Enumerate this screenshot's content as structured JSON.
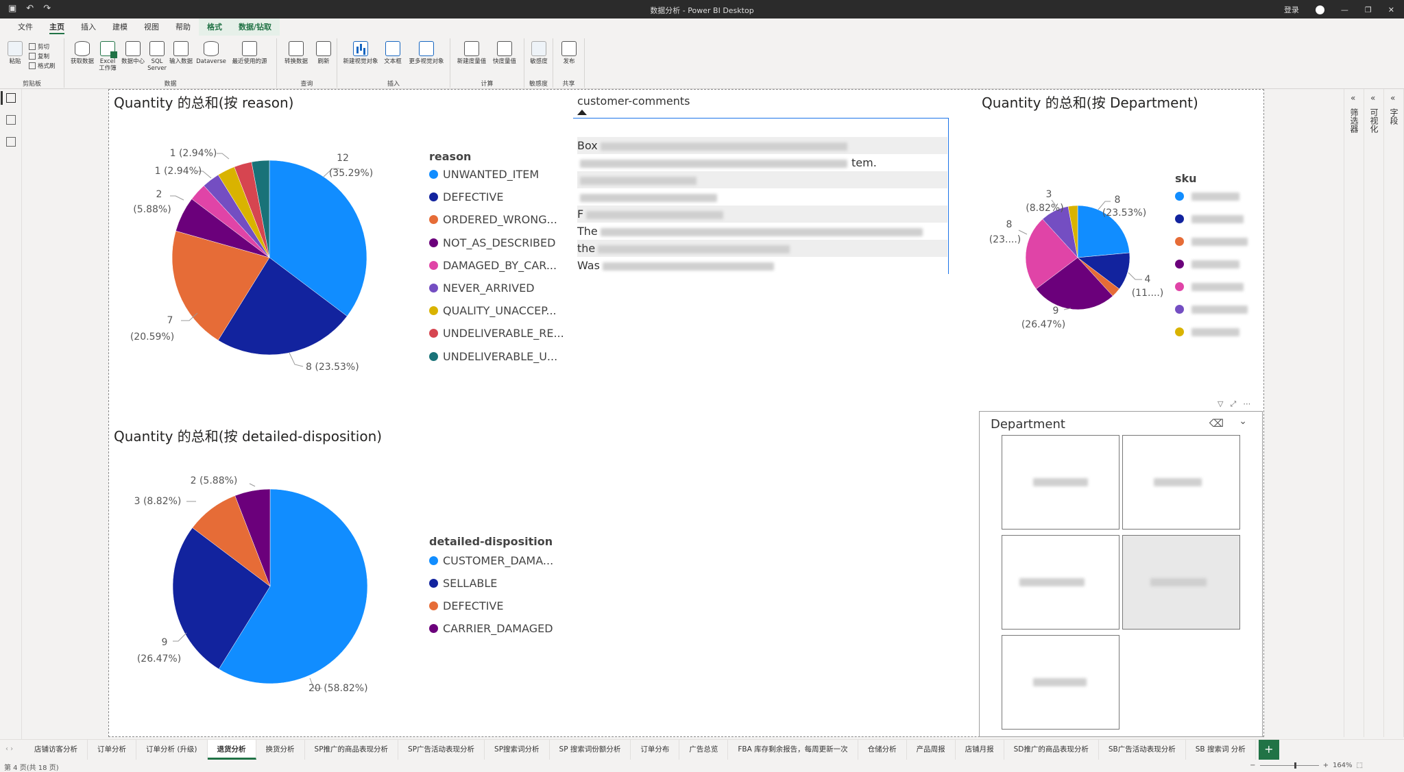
{
  "window": {
    "title": "数据分析 - Power BI Desktop",
    "signin_label": "登录",
    "minimize_glyph": "—",
    "restore_glyph": "❐",
    "close_glyph": "✕"
  },
  "ribbon_tabs": [
    {
      "label": "文件",
      "active": false,
      "contextual": false
    },
    {
      "label": "主页",
      "active": true,
      "contextual": false
    },
    {
      "label": "插入",
      "active": false,
      "contextual": false
    },
    {
      "label": "建模",
      "active": false,
      "contextual": false
    },
    {
      "label": "视图",
      "active": false,
      "contextual": false
    },
    {
      "label": "帮助",
      "active": false,
      "contextual": false
    },
    {
      "label": "格式",
      "active": false,
      "contextual": true
    },
    {
      "label": "数据/钻取",
      "active": false,
      "contextual": true
    }
  ],
  "ribbon": {
    "clipboard": {
      "paste": "粘贴",
      "cut": "剪切",
      "copy": "复制",
      "format_painter": "格式刷",
      "group": "剪贴板"
    },
    "data": {
      "get_data": "获取数据",
      "excel": "Excel 工作簿",
      "hub": "数据中心",
      "sql": "SQL Server",
      "enter": "输入数据",
      "dataverse": "Dataverse",
      "recent": "最近使用的源",
      "group": "数据"
    },
    "queries": {
      "transform": "转换数据",
      "refresh": "刷新",
      "group": "查询"
    },
    "insert": {
      "new_visual": "新建视觉对象",
      "textbox": "文本框",
      "more_visuals": "更多视觉对象",
      "group": "插入"
    },
    "calc": {
      "new_measure": "新建度量值",
      "quick_measure": "快度量值",
      "group": "计算"
    },
    "sensitivity": {
      "label": "敏感度",
      "group": "敏感度"
    },
    "share": {
      "publish": "发布",
      "group": "共享"
    }
  },
  "visuals": {
    "reason_pie": {
      "title": "Quantity 的总和(按 reason)",
      "legend_title": "reason",
      "labels": [
        "12",
        "(35.29%)",
        "8 (23.53%)",
        "7",
        "(20.59%)",
        "2",
        "(5.88%)",
        "1 (2.94%)",
        "1 (2.94%)"
      ]
    },
    "disposition_pie": {
      "title": "Quantity 的总和(按 detailed-disposition)",
      "legend_title": "detailed-disposition",
      "labels": [
        "20 (58.82%)",
        "9",
        "(26.47%)",
        "3 (8.82%)",
        "2 (5.88%)"
      ]
    },
    "department_pie": {
      "title": "Quantity 的总和(按 Department)",
      "legend_title": "sku",
      "labels": [
        "8",
        "(23.53%)",
        "4",
        "(11....)",
        "9",
        "(26.47%)",
        "8",
        "(23....)",
        "3",
        "(8.82%)"
      ]
    },
    "comments": {
      "header": "customer-comments",
      "rows": [
        "Box",
        "",
        "",
        "",
        "F",
        "The",
        "the",
        "Was"
      ],
      "row2_tail": "tem."
    },
    "slicer": {
      "title": "Department"
    }
  },
  "chart_data": [
    {
      "type": "pie",
      "title": "Quantity 的总和(按 reason)",
      "legend_title": "reason",
      "categories": [
        "UNWANTED_ITEM",
        "DEFECTIVE",
        "ORDERED_WRONG...",
        "NOT_AS_DESCRIBED",
        "DAMAGED_BY_CAR...",
        "NEVER_ARRIVED",
        "QUALITY_UNACCEP...",
        "UNDELIVERABLE_RE...",
        "UNDELIVERABLE_U..."
      ],
      "values": [
        12,
        8,
        7,
        2,
        1,
        1,
        1,
        1,
        1
      ],
      "colors": [
        "#118DFF",
        "#12239E",
        "#E66C37",
        "#6B007B",
        "#E044A7",
        "#744EC2",
        "#D9B300",
        "#D64550",
        "#197278"
      ]
    },
    {
      "type": "pie",
      "title": "Quantity 的总和(按 detailed-disposition)",
      "legend_title": "detailed-disposition",
      "categories": [
        "CUSTOMER_DAMA...",
        "SELLABLE",
        "DEFECTIVE",
        "CARRIER_DAMAGED"
      ],
      "values": [
        20,
        9,
        3,
        2
      ],
      "colors": [
        "#118DFF",
        "#12239E",
        "#E66C37",
        "#6B007B"
      ]
    },
    {
      "type": "pie",
      "title": "Quantity 的总和(按 Department)",
      "legend_title": "sku",
      "values": [
        8,
        4,
        1,
        9,
        8,
        3,
        1
      ],
      "colors": [
        "#118DFF",
        "#12239E",
        "#E66C37",
        "#6B007B",
        "#E044A7",
        "#744EC2",
        "#D9B300"
      ]
    }
  ],
  "page_tabs": [
    {
      "label": "店铺访客分析",
      "active": false
    },
    {
      "label": "订单分析",
      "active": false
    },
    {
      "label": "订单分析 (升级)",
      "active": false
    },
    {
      "label": "退货分析",
      "active": true
    },
    {
      "label": "换货分析",
      "active": false
    },
    {
      "label": "SP推广的商品表现分析",
      "active": false
    },
    {
      "label": "SP广告活动表现分析",
      "active": false
    },
    {
      "label": "SP搜索词分析",
      "active": false
    },
    {
      "label": "SP 搜索词份额分析",
      "active": false
    },
    {
      "label": "订单分布",
      "active": false
    },
    {
      "label": "广告总览",
      "active": false
    },
    {
      "label": "FBA 库存剩余报告，每周更新一次",
      "active": false
    },
    {
      "label": "仓储分析",
      "active": false
    },
    {
      "label": "产品周报",
      "active": false
    },
    {
      "label": "店铺月报",
      "active": false
    },
    {
      "label": "SD推广的商品表现分析",
      "active": false
    },
    {
      "label": "SB广告活动表现分析",
      "active": false
    },
    {
      "label": "SB 搜索词 分析",
      "active": false
    }
  ],
  "add_page": "+",
  "status": {
    "page": "第 4 页(共 18 页)",
    "zoom": "164%"
  },
  "right_panes": {
    "fields": "字段",
    "visualizations": "可视化",
    "filters": "筛选器"
  }
}
